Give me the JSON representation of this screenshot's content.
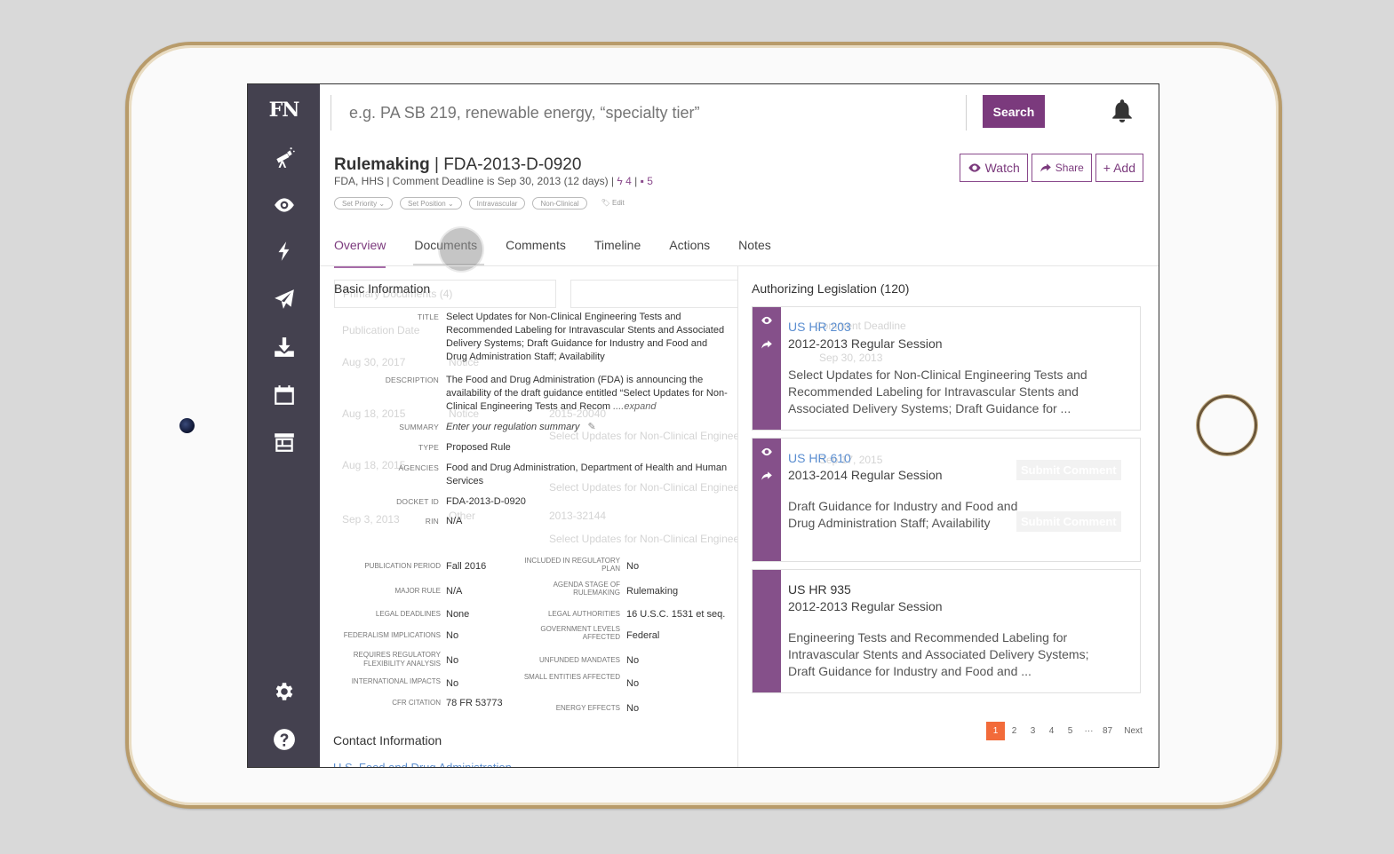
{
  "app": {
    "logo": "FN"
  },
  "sidebar": {
    "items": [
      {
        "name": "telescope-icon"
      },
      {
        "name": "eye-icon"
      },
      {
        "name": "lightning-icon"
      },
      {
        "name": "paper-plane-icon"
      },
      {
        "name": "download-icon"
      },
      {
        "name": "calendar-icon"
      },
      {
        "name": "storefront-icon"
      },
      {
        "name": "gear-icon"
      },
      {
        "name": "help-icon"
      }
    ]
  },
  "search": {
    "placeholder": "e.g. PA SB 219, renewable energy, “specialty tier”",
    "button": "Search"
  },
  "header": {
    "title_bold": "Rulemaking",
    "title_sep": " | ",
    "title_id": "FDA-2013-D-0920",
    "sub_text": "FDA, HHS | Comment Deadline is Sep 30, 2013 (12 days) |",
    "sub_count1": "4",
    "sub_count2": "5",
    "tags": [
      "Set Priority ⌄",
      "Set Position ⌄",
      "Intravascular",
      "Non-Clinical"
    ],
    "tag_edit": "Edit",
    "buttons": {
      "watch": "Watch",
      "share": "Share",
      "add": "+ Add"
    }
  },
  "tabs": [
    "Overview",
    "Documents",
    "Comments",
    "Timeline",
    "Actions",
    "Notes"
  ],
  "basic": {
    "heading": "Basic Information",
    "fields": [
      {
        "label": "Title",
        "value": "Select Updates for Non-Clinical Engineering Tests and Recommended Labeling for Intravascular Stents and Associated Delivery Systems; Draft Guidance for Industry and Food and Drug Administration Staff; Availability"
      },
      {
        "label": "Description",
        "value": "The Food and Drug Administration (FDA) is announcing the availability of the draft guidance entitled “Select Updates for Non-Clinical Engineering Tests and Recom",
        "expand": " ....expand"
      },
      {
        "label": "Summary",
        "value": "Enter your regulation summary"
      },
      {
        "label": "Type",
        "value": "Proposed Rule"
      },
      {
        "label": "Agencies",
        "value": "Food and Drug Administration, Department of Health and Human Services"
      },
      {
        "label": "Docket ID",
        "value": "FDA-2013-D-0920"
      },
      {
        "label": "RIN",
        "value": "N/A"
      }
    ],
    "grid": [
      {
        "l1": "Publication Period",
        "v1": "Fall 2016",
        "l2": "Included in Regulatory Plan",
        "v2": "No"
      },
      {
        "l1": "Major Rule",
        "v1": "N/A",
        "l2": "Agenda Stage of Rulemaking",
        "v2": "Rulemaking"
      },
      {
        "l1": "Legal Deadlines",
        "v1": "None",
        "l2": "Legal Authorities",
        "v2": "16 U.S.C. 1531 et seq."
      },
      {
        "l1": "Federalism Implications",
        "v1": "No",
        "l2": "Government Levels Affected",
        "v2": "Federal"
      },
      {
        "l1": "Requires Regulatory Flexibility Analysis",
        "v1": "No",
        "l2": "Unfunded Mandates",
        "v2": "No"
      },
      {
        "l1": "International Impacts",
        "v1": "No",
        "l2": "Small Entities Affected",
        "v2": "No"
      },
      {
        "l1": "CFR Citation",
        "v1": "78 FR 53773",
        "l2": "Energy Effects",
        "v2": "No"
      }
    ],
    "contact_heading": "Contact Information",
    "contact_link": "U.S. Food and Drug Administration"
  },
  "ghost": {
    "doc_select": "Primary Documents (4)",
    "pub_date": "Publication Date",
    "dates": [
      "Aug 30, 2017",
      "Aug 18, 2015",
      "Aug 18, 2015",
      "Sep 3, 2013"
    ],
    "types": [
      "Notice",
      "Notice",
      "Other"
    ],
    "comment_deadline": "Comment Deadline",
    "cd_dates": [
      "Sep 30, 2013",
      "Sep 17, 2015"
    ],
    "ids": [
      "2015-20040",
      "2013-32144"
    ],
    "titles": [
      "Select Updates for Non-Clinical Engineering...",
      "Select Updates for Non-Clinical Engineering...",
      "Select Updates for Non-Clinical Engineering..."
    ],
    "submit": "Submit Comment"
  },
  "legislation": {
    "heading": "Authorizing Legislation (120)",
    "cards": [
      {
        "id": "US HR 203",
        "session": "2012-2013 Regular Session",
        "desc": "Select Updates for Non-Clinical Engineering Tests and Recommended Labeling for Intravascular Stents and Associated Delivery Systems; Draft Guidance for ..."
      },
      {
        "id": "US HR 610",
        "session": "2013-2014 Regular Session",
        "desc": "Draft Guidance for Industry and Food and Drug Administration Staff; Availability"
      },
      {
        "id": "US HR 935",
        "session": "2012-2013 Regular Session",
        "desc": "Engineering Tests and Recommended Labeling for Intravascular Stents and Associated Delivery Systems; Draft Guidance for Industry and Food and ..."
      }
    ]
  },
  "pagination": {
    "pages": [
      "1",
      "2",
      "3",
      "4",
      "5",
      "···",
      "87"
    ],
    "next": "Next",
    "current": "1"
  },
  "colors": {
    "brand": "#7b3a7d",
    "sidebar": "#44414f",
    "card_bar": "#85508a",
    "link": "#5b8ed0",
    "page_active": "#f26b3a"
  }
}
